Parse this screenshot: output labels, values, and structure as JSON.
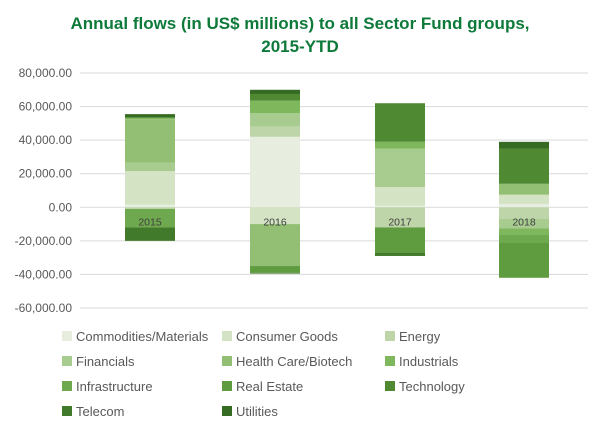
{
  "chart_data": {
    "type": "bar",
    "stacked": true,
    "title_lines": [
      "Annual flows (in US$ millions) to all Sector Fund groups,",
      "2015-YTD"
    ],
    "categories": [
      "2015",
      "2016",
      "2017",
      "2018"
    ],
    "ylim": [
      -60000,
      80000
    ],
    "yticks": [
      80000,
      60000,
      40000,
      20000,
      0,
      -20000,
      -40000,
      -60000
    ],
    "ytick_labels": [
      "80,000.00",
      "60,000.00",
      "40,000.00",
      "20,000.00",
      "0.00",
      "-20,000.00",
      "-40,000.00",
      "-60,000.00"
    ],
    "grid": true,
    "legend_position": "bottom",
    "colors": {
      "title": "#0e7a3a",
      "axis_text": "#595959",
      "grid": "#d9d9d9",
      "category_label": "#404040"
    },
    "series": [
      {
        "name": "Commodities/Materials",
        "color": "#e8eedf",
        "values": [
          1500,
          42000,
          1000,
          2000
        ]
      },
      {
        "name": "Consumer Goods",
        "color": "#d3e3c3",
        "values": [
          20000,
          -10000,
          11000,
          5500
        ]
      },
      {
        "name": "Energy",
        "color": "#bdd5a8",
        "values": [
          -1000,
          6000,
          -12000,
          -7000
        ]
      },
      {
        "name": "Financials",
        "color": "#a8cb8f",
        "values": [
          5000,
          8000,
          23000,
          -5500
        ]
      },
      {
        "name": "Health Care/Biotech",
        "color": "#93bf75",
        "values": [
          26000,
          -25000,
          0,
          6500
        ]
      },
      {
        "name": "Industrials",
        "color": "#7fb75c",
        "values": [
          1000,
          7500,
          4000,
          -4000
        ]
      },
      {
        "name": "Infrastructure",
        "color": "#6fa94f",
        "values": [
          -11000,
          0,
          0,
          -4500
        ]
      },
      {
        "name": "Real Estate",
        "color": "#5e9c3f",
        "values": [
          0,
          -4000,
          -15000,
          -21000
        ]
      },
      {
        "name": "Technology",
        "color": "#4f8a33",
        "values": [
          0,
          4000,
          23000,
          21000
        ]
      },
      {
        "name": "Telecom",
        "color": "#427a2b",
        "values": [
          0,
          -500,
          -2000,
          0
        ]
      },
      {
        "name": "Utilities",
        "color": "#356b23",
        "values": [
          2000,
          2500,
          0,
          4000
        ]
      }
    ],
    "negative_tail": [
      {
        "category": "2015",
        "color": "#427a2b",
        "value": -8000
      }
    ]
  }
}
